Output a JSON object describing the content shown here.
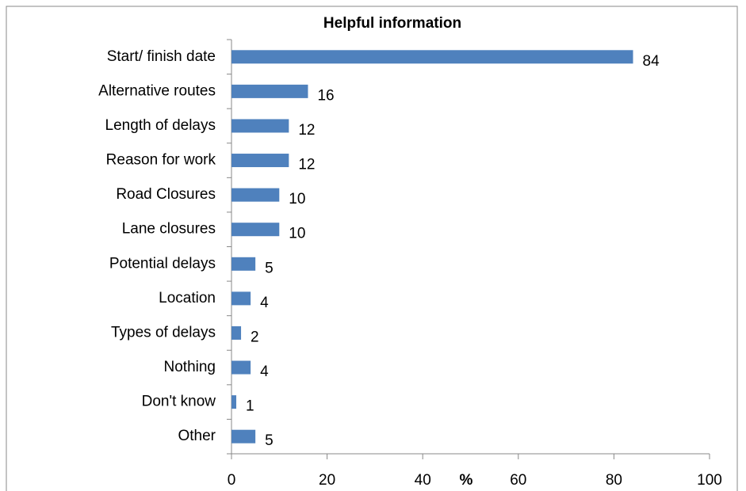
{
  "chart_data": {
    "type": "bar",
    "orientation": "horizontal",
    "title": "Helpful information",
    "x_label": "%",
    "categories": [
      "Start/ finish date",
      "Alternative routes",
      "Length of delays",
      "Reason for work",
      "Road Closures",
      "Lane closures",
      "Potential delays",
      "Location",
      "Types of delays",
      "Nothing",
      "Don't know",
      "Other"
    ],
    "values": [
      84,
      16,
      12,
      12,
      10,
      10,
      5,
      4,
      2,
      4,
      1,
      5
    ],
    "color": "#4f81bd",
    "xlim": [
      0,
      100
    ],
    "xticks": [
      0,
      20,
      40,
      60,
      80,
      100
    ],
    "grid": false
  }
}
